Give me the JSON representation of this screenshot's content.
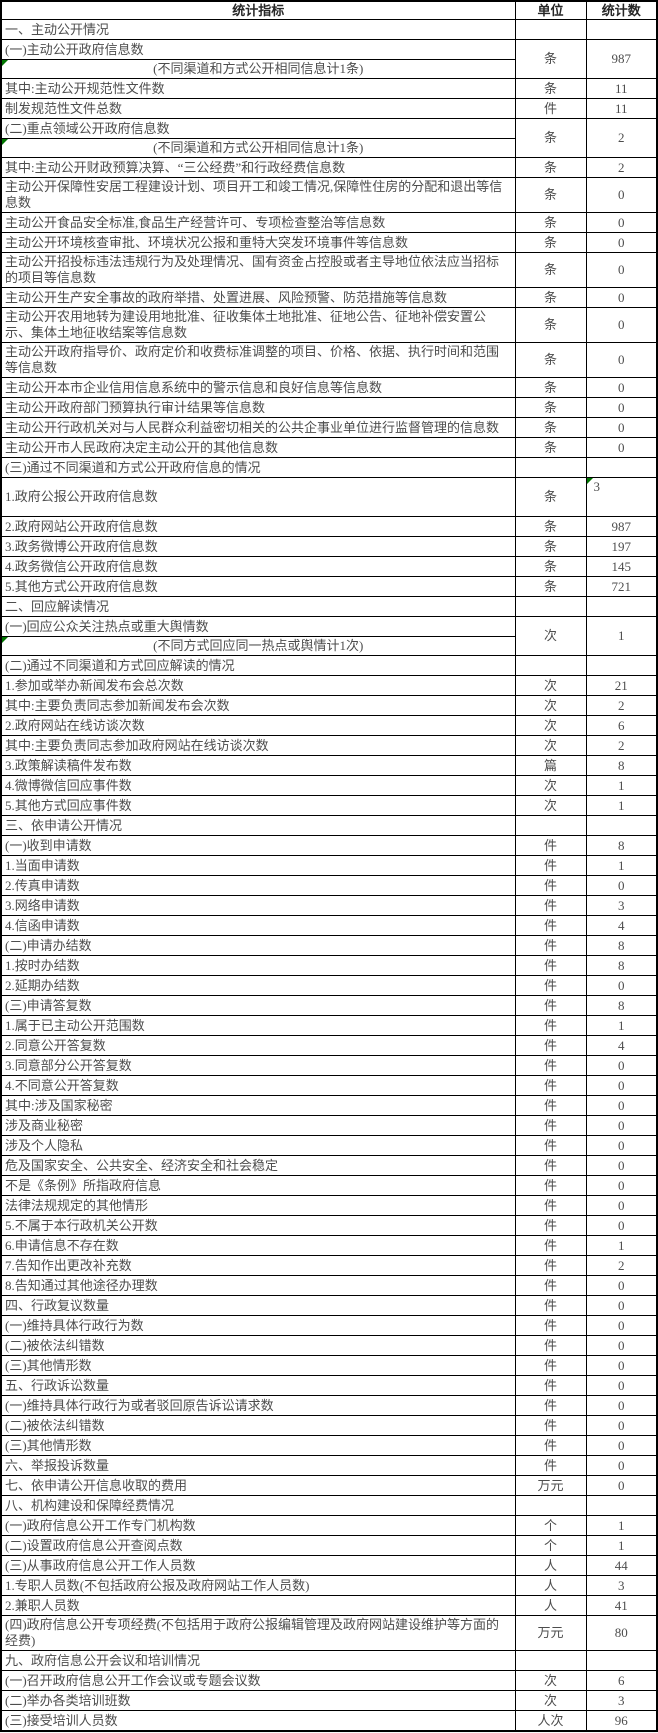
{
  "colors": {
    "flag_green": "#007500",
    "border_black": "#000000",
    "text_gray": "#4d4d4d"
  },
  "table": {
    "header": {
      "indicator": "统计指标",
      "unit": "单位",
      "count": "统计数"
    },
    "rows": [
      {
        "label": "一、主动公开情况",
        "unit": "",
        "value": "",
        "section": true
      },
      {
        "label": "(一)主动公开政府信息数",
        "note": "(不同渠道和方式公开相同信息计1条)",
        "note_marker": true,
        "unit": "条",
        "value": "987"
      },
      {
        "label": "其中:主动公开规范性文件数",
        "unit": "条",
        "value": "11"
      },
      {
        "label": "制发规范性文件总数",
        "unit": "件",
        "value": "11"
      },
      {
        "label": "(二)重点领域公开政府信息数",
        "note": "(不同渠道和方式公开相同信息计1条)",
        "note_marker": true,
        "unit": "条",
        "value": "2"
      },
      {
        "label": "其中:主动公开财政预算决算、“三公经费”和行政经费信息数",
        "unit": "条",
        "value": "2"
      },
      {
        "label": "主动公开保障性安居工程建设计划、项目开工和竣工情况,保障性住房的分配和退出等信息数",
        "unit": "条",
        "value": "0"
      },
      {
        "label": "主动公开食品安全标准,食品生产经营许可、专项检查整治等信息数",
        "unit": "条",
        "value": "0"
      },
      {
        "label": "主动公开环境核查审批、环境状况公报和重特大突发环境事件等信息数",
        "unit": "条",
        "value": "0"
      },
      {
        "label": "主动公开招投标违法违规行为及处理情况、国有资金占控股或者主导地位依法应当招标的项目等信息数",
        "unit": "条",
        "value": "0"
      },
      {
        "label": "主动公开生产安全事故的政府举措、处置进展、风险预警、防范措施等信息数",
        "unit": "条",
        "value": "0"
      },
      {
        "label": "主动公开农用地转为建设用地批准、征收集体土地批准、征地公告、征地补偿安置公示、集体土地征收结案等信息数",
        "unit": "条",
        "value": "0"
      },
      {
        "label": "主动公开政府指导价、政府定价和收费标准调整的项目、价格、依据、执行时间和范围等信息数",
        "unit": "条",
        "value": "0"
      },
      {
        "label": "主动公开本市企业信用信息系统中的警示信息和良好信息等信息数",
        "unit": "条",
        "value": "0"
      },
      {
        "label": "主动公开政府部门预算执行审计结果等信息数",
        "unit": "条",
        "value": "0"
      },
      {
        "label": "主动公开行政机关对与人民群众利益密切相关的公共企事业单位进行监督管理的信息数",
        "unit": "条",
        "value": "0"
      },
      {
        "label": "主动公开市人民政府决定主动公开的其他信息数",
        "unit": "条",
        "value": "0"
      },
      {
        "label": "(三)通过不同渠道和方式公开政府信息的情况",
        "unit": "",
        "value": "",
        "section": true
      },
      {
        "label": "1.政府公报公开政府信息数",
        "unit": "条",
        "value": "3",
        "value_marker": true,
        "tall": true
      },
      {
        "label": "2.政府网站公开政府信息数",
        "unit": "条",
        "value": "987"
      },
      {
        "label": "3.政务微博公开政府信息数",
        "unit": "条",
        "value": "197"
      },
      {
        "label": "4.政务微信公开政府信息数",
        "unit": "条",
        "value": "145"
      },
      {
        "label": "5.其他方式公开政府信息数",
        "unit": "条",
        "value": "721"
      },
      {
        "label": "二、回应解读情况",
        "unit": "",
        "value": "",
        "section": true
      },
      {
        "label": "(一)回应公众关注热点或重大舆情数",
        "note": "(不同方式回应同一热点或舆情计1次)",
        "note_marker": true,
        "unit": "次",
        "value": "1"
      },
      {
        "label": "(二)通过不同渠道和方式回应解读的情况",
        "unit": "",
        "value": "",
        "section": true
      },
      {
        "label": "1.参加或举办新闻发布会总次数",
        "unit": "次",
        "value": "21"
      },
      {
        "label": "其中:主要负责同志参加新闻发布会次数",
        "unit": "次",
        "value": "2"
      },
      {
        "label": "2.政府网站在线访谈次数",
        "unit": "次",
        "value": "6"
      },
      {
        "label": "其中:主要负责同志参加政府网站在线访谈次数",
        "unit": "次",
        "value": "2"
      },
      {
        "label": "3.政策解读稿件发布数",
        "unit": "篇",
        "value": "8"
      },
      {
        "label": "4.微博微信回应事件数",
        "unit": "次",
        "value": "1"
      },
      {
        "label": "5.其他方式回应事件数",
        "unit": "次",
        "value": "1"
      },
      {
        "label": "三、依申请公开情况",
        "unit": "",
        "value": "",
        "section": true
      },
      {
        "label": "(一)收到申请数",
        "unit": "件",
        "value": "8"
      },
      {
        "label": "1.当面申请数",
        "unit": "件",
        "value": "1"
      },
      {
        "label": "2.传真申请数",
        "unit": "件",
        "value": "0"
      },
      {
        "label": "3.网络申请数",
        "unit": "件",
        "value": "3"
      },
      {
        "label": "4.信函申请数",
        "unit": "件",
        "value": "4"
      },
      {
        "label": "(二)申请办结数",
        "unit": "件",
        "value": "8"
      },
      {
        "label": "1.按时办结数",
        "unit": "件",
        "value": "8"
      },
      {
        "label": "2.延期办结数",
        "unit": "件",
        "value": "0"
      },
      {
        "label": "(三)申请答复数",
        "unit": "件",
        "value": "8"
      },
      {
        "label": "1.属于已主动公开范围数",
        "unit": "件",
        "value": "1"
      },
      {
        "label": "2.同意公开答复数",
        "unit": "件",
        "value": "4"
      },
      {
        "label": "3.同意部分公开答复数",
        "unit": "件",
        "value": "0"
      },
      {
        "label": "4.不同意公开答复数",
        "unit": "件",
        "value": "0"
      },
      {
        "label": "其中:涉及国家秘密",
        "unit": "件",
        "value": "0"
      },
      {
        "label": "涉及商业秘密",
        "unit": "件",
        "value": "0"
      },
      {
        "label": "涉及个人隐私",
        "unit": "件",
        "value": "0"
      },
      {
        "label": "危及国家安全、公共安全、经济安全和社会稳定",
        "unit": "件",
        "value": "0"
      },
      {
        "label": "不是《条例》所指政府信息",
        "unit": "件",
        "value": "0"
      },
      {
        "label": "法律法规规定的其他情形",
        "unit": "件",
        "value": "0"
      },
      {
        "label": "5.不属于本行政机关公开数",
        "unit": "件",
        "value": "0"
      },
      {
        "label": "6.申请信息不存在数",
        "unit": "件",
        "value": "1"
      },
      {
        "label": "7.告知作出更改补充数",
        "unit": "件",
        "value": "2"
      },
      {
        "label": "8.告知通过其他途径办理数",
        "unit": "件",
        "value": "0"
      },
      {
        "label": "四、行政复议数量",
        "unit": "件",
        "value": "0"
      },
      {
        "label": "(一)维持具体行政行为数",
        "unit": "件",
        "value": "0"
      },
      {
        "label": "(二)被依法纠错数",
        "unit": "件",
        "value": "0"
      },
      {
        "label": "(三)其他情形数",
        "unit": "件",
        "value": "0"
      },
      {
        "label": "五、行政诉讼数量",
        "unit": "件",
        "value": "0"
      },
      {
        "label": "(一)维持具体行政行为或者驳回原告诉讼请求数",
        "unit": "件",
        "value": "0"
      },
      {
        "label": "(二)被依法纠错数",
        "unit": "件",
        "value": "0"
      },
      {
        "label": "(三)其他情形数",
        "unit": "件",
        "value": "0"
      },
      {
        "label": "六、举报投诉数量",
        "unit": "件",
        "value": "0"
      },
      {
        "label": "七、依申请公开信息收取的费用",
        "unit": "万元",
        "value": "0"
      },
      {
        "label": "八、机构建设和保障经费情况",
        "unit": "",
        "value": "",
        "section": true
      },
      {
        "label": "(一)政府信息公开工作专门机构数",
        "unit": "个",
        "value": "1"
      },
      {
        "label": "(二)设置政府信息公开查阅点数",
        "unit": "个",
        "value": "1"
      },
      {
        "label": "(三)从事政府信息公开工作人员数",
        "unit": "人",
        "value": "44"
      },
      {
        "label": "1.专职人员数(不包括政府公报及政府网站工作人员数)",
        "unit": "人",
        "value": "3"
      },
      {
        "label": "2.兼职人员数",
        "unit": "人",
        "value": "41"
      },
      {
        "label": "(四)政府信息公开专项经费(不包括用于政府公报编辑管理及政府网站建设维护等方面的经费)",
        "unit": "万元",
        "value": "80"
      },
      {
        "label": "九、政府信息公开会议和培训情况",
        "unit": "",
        "value": "",
        "section": true
      },
      {
        "label": "(一)召开政府信息公开工作会议或专题会议数",
        "unit": "次",
        "value": "6"
      },
      {
        "label": "(二)举办各类培训班数",
        "unit": "次",
        "value": "3"
      },
      {
        "label": "(三)接受培训人员数",
        "unit": "人次",
        "value": "96"
      }
    ]
  }
}
